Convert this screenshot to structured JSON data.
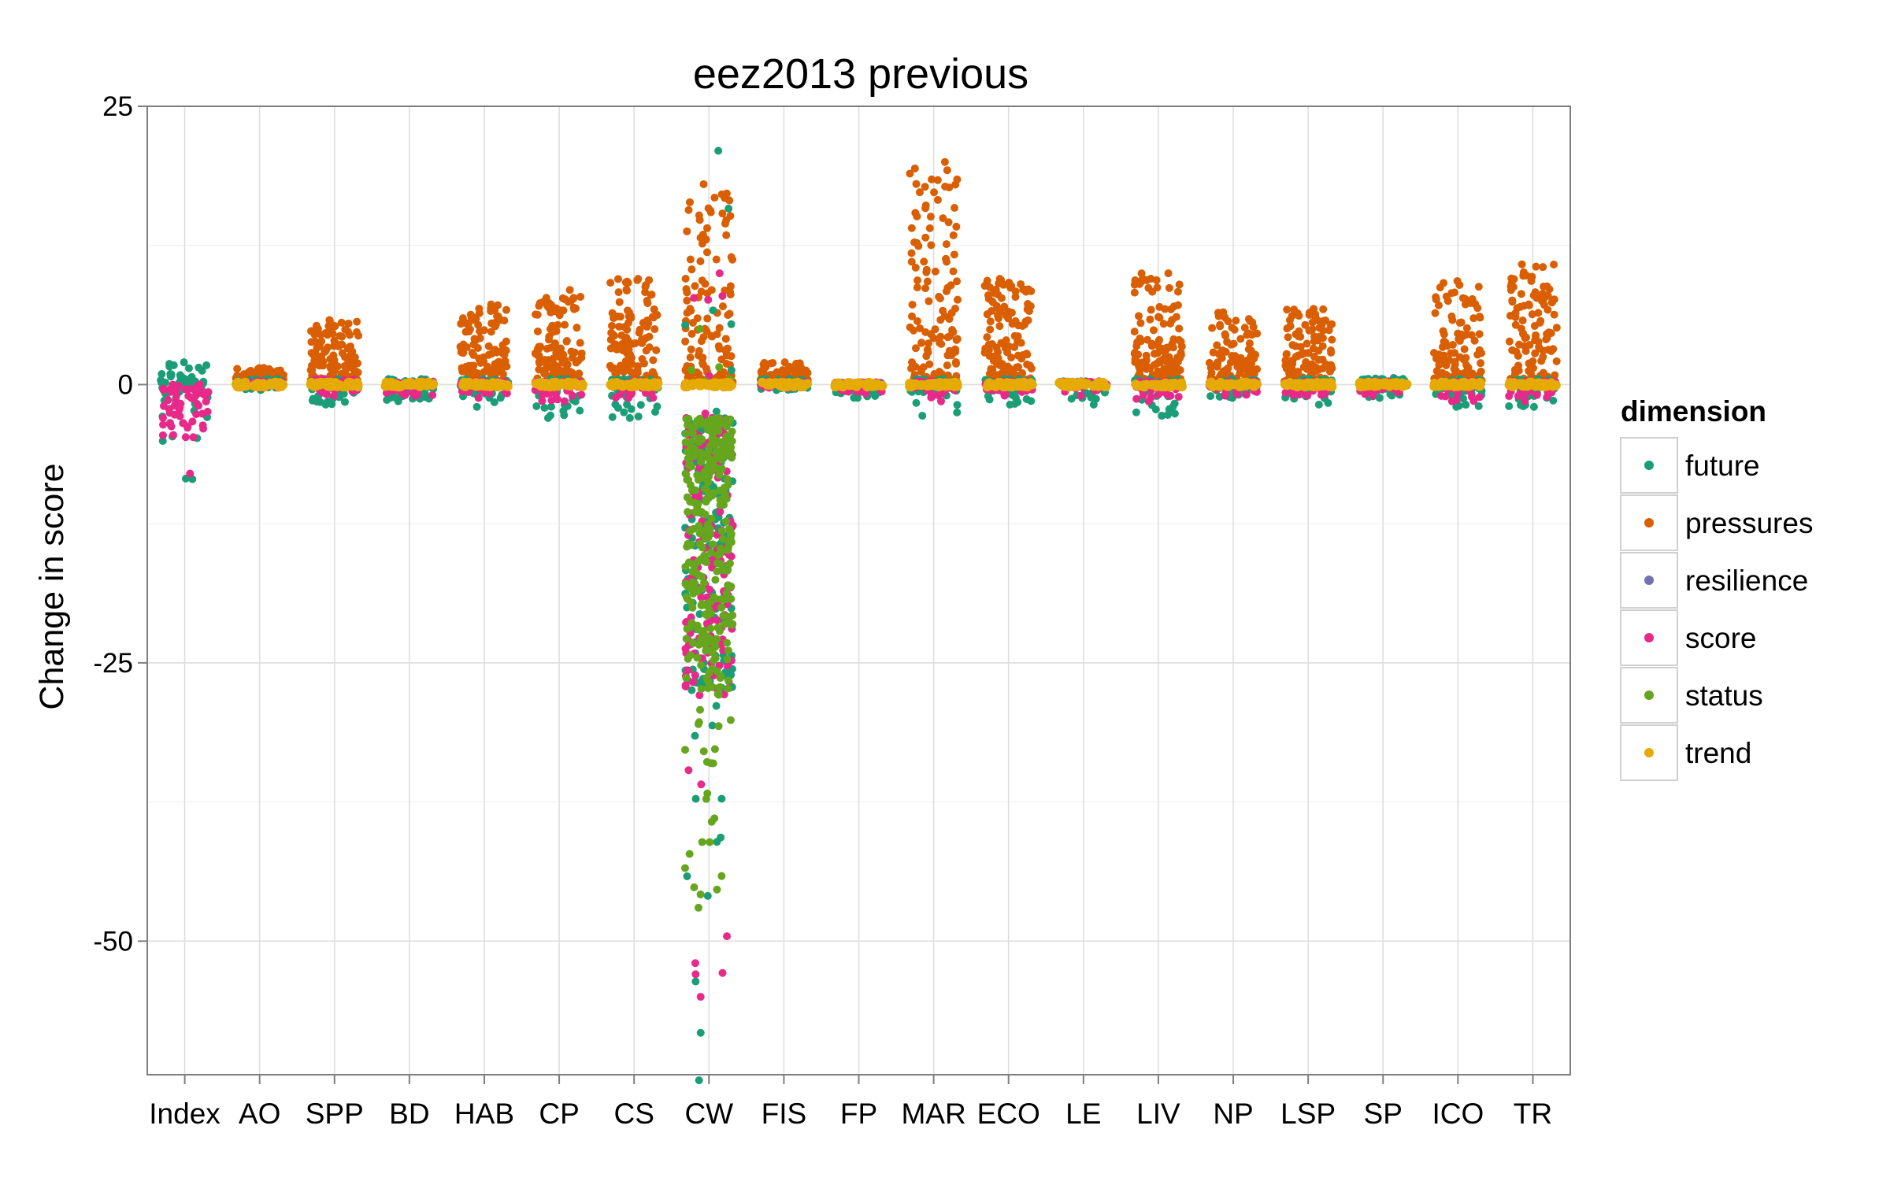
{
  "chart_data": {
    "type": "scatter",
    "title": "eez2013 previous",
    "xlabel": "",
    "ylabel": "Change in score",
    "categories": [
      "Index",
      "AO",
      "SPP",
      "BD",
      "HAB",
      "CP",
      "CS",
      "CW",
      "FIS",
      "FP",
      "MAR",
      "ECO",
      "LE",
      "LIV",
      "NP",
      "LSP",
      "SP",
      "ICO",
      "TR"
    ],
    "ylim": [
      -62,
      25
    ],
    "yticks": [
      25,
      0,
      -25,
      -50
    ],
    "grid": true,
    "legend": {
      "title": "dimension",
      "placement": "right",
      "entries": [
        "future",
        "pressures",
        "resilience",
        "score",
        "status",
        "trend"
      ]
    },
    "colors": {
      "future": "#1b9e77",
      "pressures": "#d95f02",
      "resilience": "#7570b3",
      "score": "#e7298a",
      "status": "#66a61e",
      "trend": "#e6ab02"
    },
    "series": [
      {
        "name": "pressures",
        "ranges": {
          "Index": null,
          "AO": [
            0,
            1.5
          ],
          "SPP": [
            0,
            5.8
          ],
          "BD": null,
          "HAB": [
            0,
            7.2
          ],
          "CP": [
            0,
            8.5
          ],
          "CS": [
            0,
            9.5
          ],
          "CW": [
            0,
            18
          ],
          "FIS": [
            0,
            2
          ],
          "FP": null,
          "MAR": [
            0,
            20
          ],
          "ECO": [
            0,
            9.5
          ],
          "LE": null,
          "LIV": [
            0,
            10
          ],
          "NP": [
            0,
            6.5
          ],
          "LSP": [
            0,
            6.8
          ],
          "SP": null,
          "ICO": [
            0,
            9.3
          ],
          "TR": [
            0,
            10.8
          ]
        }
      },
      {
        "name": "future",
        "ranges": {
          "Index": [
            -8.5,
            2
          ],
          "AO": [
            -0.5,
            0.5
          ],
          "SPP": [
            -1.8,
            0.5
          ],
          "BD": [
            -1.5,
            0.5
          ],
          "HAB": [
            -2,
            0.5
          ],
          "CP": [
            -3,
            0.5
          ],
          "CS": [
            -3,
            0.5
          ],
          "CW": [
            -62.5,
            21
          ],
          "FIS": [
            -0.5,
            0.5
          ],
          "FP": [
            -1.2,
            0.2
          ],
          "MAR": [
            -2.8,
            0.5
          ],
          "ECO": [
            -1.8,
            0.5
          ],
          "LE": [
            -1.8,
            0.3
          ],
          "LIV": [
            -2.8,
            0.5
          ],
          "NP": [
            -1.2,
            0.5
          ],
          "LSP": [
            -1.8,
            0.5
          ],
          "SP": [
            -1.2,
            0.6
          ],
          "ICO": [
            -2,
            0.5
          ],
          "TR": [
            -2,
            0.5
          ]
        }
      },
      {
        "name": "score",
        "ranges": {
          "Index": [
            -8,
            0
          ],
          "AO": [
            -0.3,
            0.3
          ],
          "SPP": [
            -1,
            0.5
          ],
          "BD": [
            -1,
            0.3
          ],
          "HAB": [
            -1.2,
            0.3
          ],
          "CP": [
            -1.5,
            0.3
          ],
          "CS": [
            -1.2,
            0.3
          ],
          "CW": [
            -55,
            10
          ],
          "FIS": [
            -0.3,
            0.3
          ],
          "FP": [
            -0.8,
            0.2
          ],
          "MAR": [
            -1.5,
            0.3
          ],
          "ECO": [
            -1,
            0.3
          ],
          "LE": [
            -1,
            0.3
          ],
          "LIV": [
            -1.5,
            0.3
          ],
          "NP": [
            -1,
            0.3
          ],
          "LSP": [
            -1,
            0.3
          ],
          "SP": [
            -1,
            0.3
          ],
          "ICO": [
            -1.5,
            0.3
          ],
          "TR": [
            -1.5,
            0.3
          ]
        }
      },
      {
        "name": "status",
        "ranges": {
          "CW": [
            -47,
            5
          ]
        }
      },
      {
        "name": "trend",
        "ranges": {
          "Index": null,
          "AO": [
            0,
            0
          ],
          "SPP": [
            0,
            0
          ],
          "BD": [
            0,
            0
          ],
          "HAB": [
            0,
            0
          ],
          "CP": [
            0,
            0
          ],
          "CS": [
            0,
            0
          ],
          "CW": [
            0,
            0
          ],
          "FIS": [
            0,
            0
          ],
          "FP": [
            0,
            0
          ],
          "MAR": [
            0,
            0
          ],
          "ECO": [
            0,
            0
          ],
          "LE": [
            0,
            0
          ],
          "LIV": [
            0,
            0
          ],
          "NP": [
            0,
            0
          ],
          "LSP": [
            0,
            0
          ],
          "SP": [
            0,
            0
          ],
          "ICO": [
            0,
            0
          ],
          "TR": [
            0,
            0
          ]
        }
      },
      {
        "name": "resilience",
        "ranges": {}
      }
    ]
  }
}
